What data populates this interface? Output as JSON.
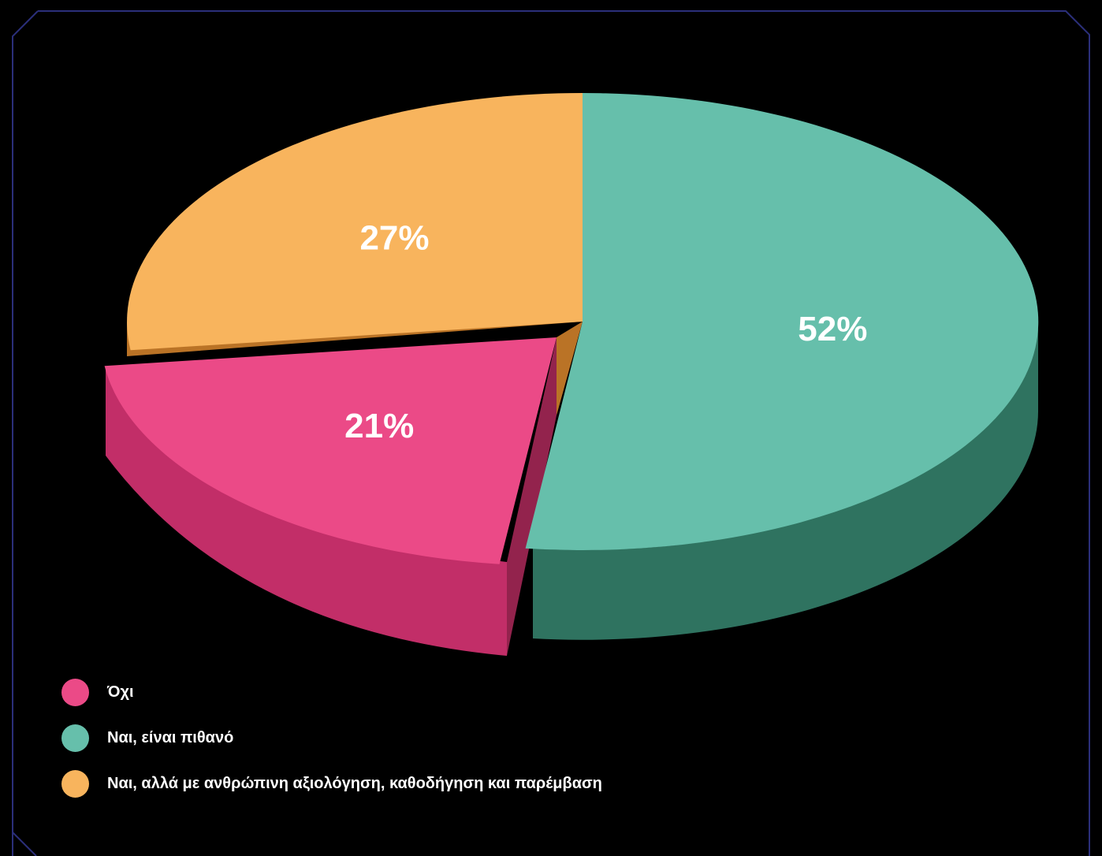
{
  "chart_data": {
    "type": "pie",
    "title": "",
    "slices": [
      {
        "label": "Όχι",
        "value": 21,
        "display": "21%",
        "color": "#EB4A87",
        "side": "#C22E68",
        "edge": "#93234D",
        "exploded": true
      },
      {
        "label": "Ναι, είναι πιθανό",
        "value": 52,
        "display": "52%",
        "color": "#66BFAB",
        "side": "#2F7360",
        "edge": "#2F7360",
        "exploded": false
      },
      {
        "label": "Ναι, αλλά με ανθρώπινη αξιολόγηση, καθοδήγηση και παρέμβαση",
        "value": 27,
        "display": "27%",
        "color": "#F8B45D",
        "side": "#BA7326",
        "edge": "#BA7326",
        "exploded": false
      }
    ],
    "legend_position": "bottom-left"
  },
  "frame_color": "#2B2F7A"
}
